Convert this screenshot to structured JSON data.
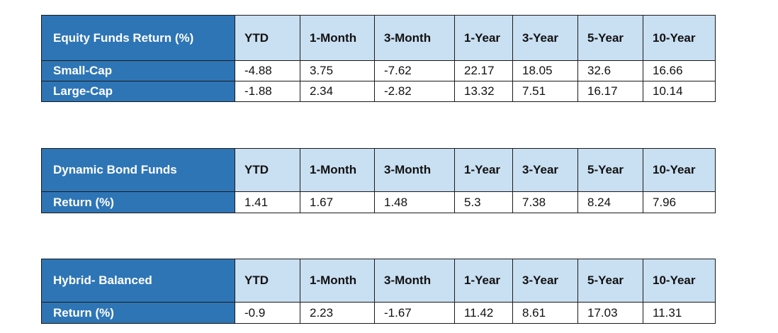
{
  "columns": [
    "YTD",
    "1-Month",
    "3-Month",
    "1-Year",
    "3-Year",
    "5-Year",
    "10-Year"
  ],
  "tables": [
    {
      "title": "Equity Funds Return (%)",
      "rows": [
        {
          "label": "Small-Cap",
          "values": [
            "-4.88",
            "3.75",
            "-7.62",
            "22.17",
            "18.05",
            "32.6",
            "16.66"
          ]
        },
        {
          "label": "Large-Cap",
          "values": [
            "-1.88",
            "2.34",
            "-2.82",
            "13.32",
            "7.51",
            "16.17",
            "10.14"
          ]
        }
      ]
    },
    {
      "title": "Dynamic Bond Funds",
      "rows": [
        {
          "label": "Return (%)",
          "values": [
            "1.41",
            "1.67",
            "1.48",
            "5.3",
            "7.38",
            "8.24",
            "7.96"
          ]
        }
      ]
    },
    {
      "title": "Hybrid- Balanced",
      "rows": [
        {
          "label": "Return (%)",
          "values": [
            "-0.9",
            "2.23",
            "-1.67",
            "11.42",
            "8.61",
            "17.03",
            "11.31"
          ]
        }
      ]
    }
  ],
  "colors": {
    "header_dark": "#2e75b6",
    "header_light": "#c9dff2",
    "border": "#1a1a1a"
  }
}
